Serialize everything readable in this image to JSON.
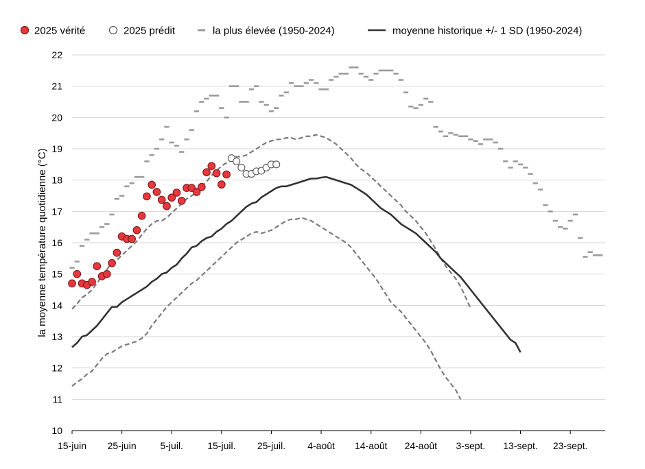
{
  "colors": {
    "actual_fill": "#e8383d",
    "actual_stroke": "#7a1a1a",
    "predicted_stroke": "#555555",
    "max_line": "#9a9a9a",
    "mean_line": "#333333",
    "sd_line": "#7a7a7a",
    "grid": "#d4d4d4",
    "axis": "#000000"
  },
  "chart_data": {
    "type": "line",
    "ylabel": "la moyenne température quotidienne (°C)",
    "ylim": [
      10,
      22
    ],
    "yticks": [
      10,
      11,
      12,
      13,
      14,
      15,
      16,
      17,
      18,
      19,
      20,
      21,
      22
    ],
    "x_start_day": 0,
    "x_end_day": 107,
    "xtick_days": [
      0,
      10,
      20,
      30,
      40,
      50,
      60,
      70,
      80,
      90,
      100
    ],
    "xtick_labels": [
      "15-juin",
      "25-juin",
      "5-juil.",
      "15-juil.",
      "25-juil.",
      "4-août",
      "14-août",
      "24-août",
      "3-sept.",
      "13-sept.",
      "23-sept."
    ],
    "grid": true,
    "legend": [
      {
        "key": "actual",
        "label": "2025 vérité"
      },
      {
        "key": "predicted",
        "label": "2025 prédit"
      },
      {
        "key": "max",
        "label": "la plus élevée (1950-2024)"
      },
      {
        "key": "mean",
        "label": "moyenne historique +/- 1 SD (1950-2024)"
      }
    ],
    "series": [
      {
        "name": "2025 vérité",
        "key": "actual",
        "start_day": 0,
        "values": [
          14.7,
          15.0,
          14.7,
          14.65,
          14.75,
          15.25,
          14.93,
          15.0,
          15.35,
          15.68,
          16.2,
          16.12,
          16.12,
          16.4,
          16.86,
          17.48,
          17.85,
          17.62,
          17.37,
          17.17,
          17.44,
          17.6,
          17.34,
          17.75,
          17.75,
          17.62,
          17.78,
          18.25,
          18.45,
          18.22,
          17.86,
          18.18
        ]
      },
      {
        "name": "2025 prédit",
        "key": "predicted",
        "start_day": 32,
        "values": [
          18.7,
          18.6,
          18.4,
          18.2,
          18.2,
          18.28,
          18.3,
          18.4,
          18.5,
          18.5
        ]
      },
      {
        "name": "la plus élevée (1950-2024)",
        "key": "max",
        "start_day": 0,
        "values": [
          15.2,
          15.4,
          15.9,
          16.1,
          16.3,
          16.3,
          16.5,
          16.6,
          16.9,
          17.4,
          17.5,
          17.8,
          17.9,
          18.1,
          18.1,
          18.6,
          18.8,
          19.0,
          19.3,
          19.7,
          19.2,
          19.1,
          18.9,
          19.3,
          19.6,
          20.2,
          20.5,
          20.6,
          20.7,
          20.7,
          20.3,
          20.0,
          21.0,
          21.0,
          20.5,
          20.5,
          20.9,
          21.0,
          20.5,
          20.4,
          20.2,
          20.3,
          20.7,
          20.8,
          21.1,
          21.0,
          21.0,
          21.1,
          21.2,
          21.1,
          20.9,
          20.9,
          21.2,
          21.3,
          21.4,
          21.4,
          21.6,
          21.6,
          21.4,
          21.3,
          21.2,
          21.4,
          21.5,
          21.5,
          21.5,
          21.4,
          21.2,
          20.8,
          20.35,
          20.3,
          20.4,
          20.6,
          20.5,
          19.7,
          19.55,
          19.4,
          19.5,
          19.45,
          19.4,
          19.4,
          19.3,
          19.25,
          19.15,
          19.3,
          19.3,
          19.2,
          19.0,
          18.6,
          18.4,
          18.6,
          18.5,
          18.4,
          18.2,
          17.9,
          17.7,
          17.2,
          17.0,
          16.7,
          16.5,
          16.45,
          16.7,
          16.9,
          16.15,
          15.55,
          15.7,
          15.6,
          15.6
        ]
      },
      {
        "name": "moyenne historique",
        "key": "mean",
        "start_day": 0,
        "values": [
          12.66,
          12.8,
          13.0,
          13.05,
          13.2,
          13.35,
          13.55,
          13.75,
          13.95,
          13.95,
          14.1,
          14.2,
          14.3,
          14.4,
          14.5,
          14.6,
          14.75,
          14.85,
          15.0,
          15.05,
          15.2,
          15.3,
          15.5,
          15.65,
          15.85,
          15.9,
          16.05,
          16.15,
          16.2,
          16.35,
          16.45,
          16.6,
          16.7,
          16.85,
          17.0,
          17.15,
          17.25,
          17.3,
          17.45,
          17.55,
          17.65,
          17.75,
          17.8,
          17.8,
          17.85,
          17.9,
          17.95,
          18.0,
          18.05,
          18.05,
          18.08,
          18.1,
          18.05,
          18.0,
          17.95,
          17.9,
          17.85,
          17.75,
          17.65,
          17.55,
          17.4,
          17.25,
          17.1,
          17.0,
          16.9,
          16.75,
          16.6,
          16.5,
          16.4,
          16.3,
          16.15,
          16.0,
          15.85,
          15.7,
          15.5,
          15.35,
          15.2,
          15.05,
          14.9,
          14.7,
          14.5,
          14.3,
          14.1,
          13.9,
          13.7,
          13.5,
          13.3,
          13.1,
          12.9,
          12.8,
          12.5
        ]
      },
      {
        "name": "moyenne + 1 SD",
        "key": "mean_plus_sd",
        "start_day": 0,
        "values": [
          13.88,
          14.05,
          14.25,
          14.35,
          14.5,
          14.7,
          14.95,
          15.15,
          15.35,
          15.45,
          15.6,
          15.75,
          15.9,
          16.05,
          16.25,
          16.45,
          16.6,
          16.7,
          16.7,
          16.8,
          16.95,
          17.1,
          17.25,
          17.4,
          17.5,
          17.6,
          17.8,
          17.95,
          18.15,
          18.3,
          18.45,
          18.55,
          18.65,
          18.75,
          18.75,
          18.8,
          18.9,
          19.0,
          19.1,
          19.2,
          19.25,
          19.3,
          19.3,
          19.35,
          19.35,
          19.3,
          19.35,
          19.4,
          19.4,
          19.45,
          19.4,
          19.35,
          19.25,
          19.15,
          19.0,
          18.85,
          18.7,
          18.5,
          18.35,
          18.25,
          18.1,
          17.95,
          17.8,
          17.65,
          17.5,
          17.35,
          17.2,
          17.0,
          16.85,
          16.7,
          16.5,
          16.3,
          16.05,
          15.8,
          15.5,
          15.25,
          15.05,
          14.85,
          14.6,
          14.25,
          13.9
        ]
      },
      {
        "name": "moyenne - 1 SD",
        "key": "mean_minus_sd",
        "start_day": 0,
        "values": [
          11.42,
          11.55,
          11.65,
          11.8,
          11.9,
          12.1,
          12.3,
          12.45,
          12.5,
          12.6,
          12.7,
          12.75,
          12.8,
          12.85,
          12.95,
          13.1,
          13.35,
          13.55,
          13.75,
          13.95,
          14.1,
          14.25,
          14.4,
          14.55,
          14.7,
          14.8,
          14.95,
          15.1,
          15.25,
          15.4,
          15.55,
          15.7,
          15.85,
          16.0,
          16.1,
          16.2,
          16.3,
          16.35,
          16.3,
          16.35,
          16.4,
          16.5,
          16.6,
          16.7,
          16.75,
          16.75,
          16.8,
          16.75,
          16.7,
          16.6,
          16.5,
          16.4,
          16.3,
          16.2,
          16.1,
          16.0,
          15.85,
          15.65,
          15.45,
          15.25,
          15.05,
          14.85,
          14.6,
          14.35,
          14.1,
          13.95,
          13.8,
          13.6,
          13.4,
          13.2,
          13.0,
          12.8,
          12.55,
          12.25,
          11.95,
          11.7,
          11.5,
          11.3,
          11.0
        ]
      }
    ]
  }
}
